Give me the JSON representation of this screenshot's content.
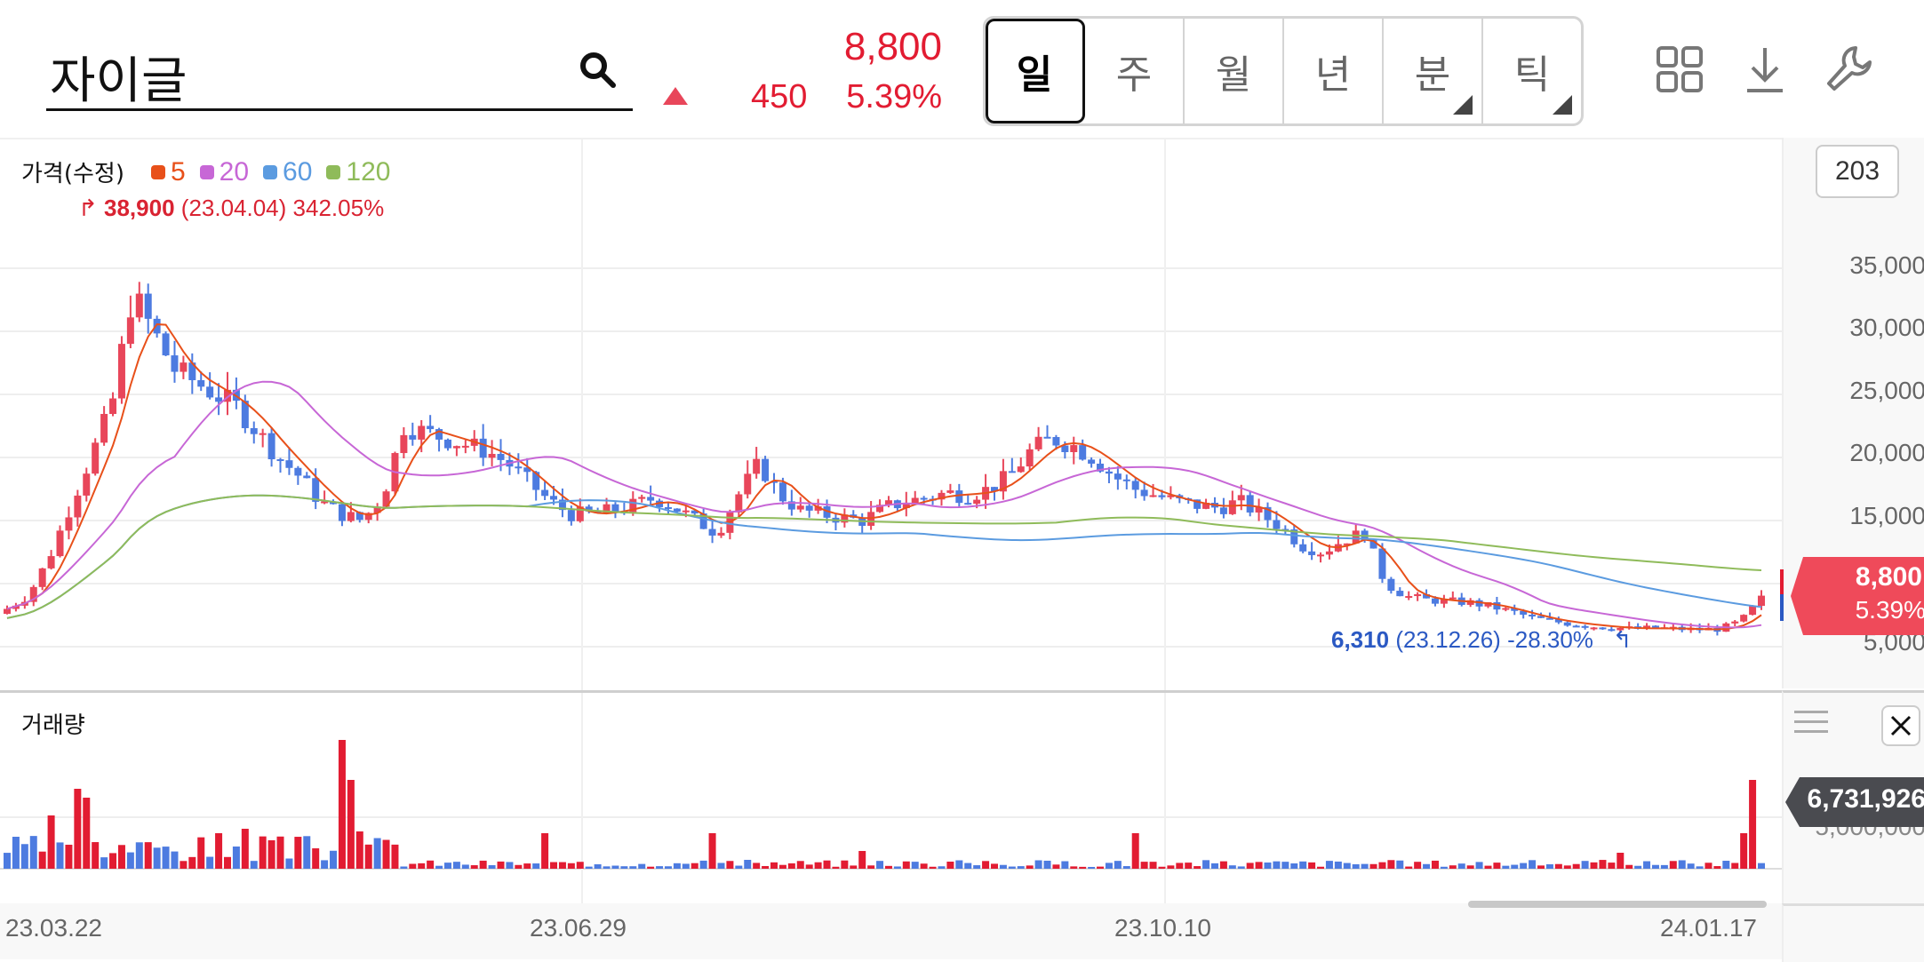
{
  "header": {
    "stock_name": "자이글",
    "price": "8,800",
    "change": "450",
    "change_pct": "5.39%",
    "direction": "up",
    "periods": [
      {
        "label": "일",
        "active": true,
        "has_menu": false
      },
      {
        "label": "주",
        "active": false,
        "has_menu": false
      },
      {
        "label": "월",
        "active": false,
        "has_menu": false
      },
      {
        "label": "년",
        "active": false,
        "has_menu": false
      },
      {
        "label": "분",
        "active": false,
        "has_menu": true
      },
      {
        "label": "틱",
        "active": false,
        "has_menu": true
      }
    ],
    "tools": [
      "layout-grid-icon",
      "download-icon",
      "wrench-icon"
    ]
  },
  "price_panel": {
    "title": "가격(수정)",
    "ma_legend": [
      {
        "label": "5",
        "color": "#e8501a"
      },
      {
        "label": "20",
        "color": "#c767d6"
      },
      {
        "label": "60",
        "color": "#5b9be0"
      },
      {
        "label": "120",
        "color": "#8fbb5a"
      }
    ],
    "high_annotation": {
      "value": "38,900",
      "date": "(23.04.04)",
      "pct": "342.05%"
    },
    "low_annotation": {
      "value": "6,310",
      "date": "(23.12.26)",
      "pct": "-28.30%"
    },
    "candle_count": "203",
    "y_labels": [
      "35,000",
      "30,000",
      "25,000",
      "20,000",
      "15,000",
      "5,000"
    ],
    "current_tag": {
      "price": "8,800",
      "pct": "5.39%"
    }
  },
  "volume_panel": {
    "title": "거래량",
    "current_tag": "6,731,926",
    "y_label": "5,000,000"
  },
  "x_axis": {
    "labels": [
      "23.03.22",
      "23.06.29",
      "23.10.10",
      "24.01.17"
    ]
  },
  "colors": {
    "up": "#e8465a",
    "down": "#4d7be0",
    "accent": "#e21c32"
  },
  "chart_data": {
    "type": "candlestick",
    "title": "가격(수정)",
    "ylim": [
      3000,
      40000
    ],
    "x_ticks": [
      "23.03.22",
      "23.06.29",
      "23.10.10",
      "24.01.17"
    ],
    "y_ticks": [
      5000,
      15000,
      20000,
      25000,
      30000,
      35000
    ],
    "close_path": [
      8000,
      9000,
      12000,
      16000,
      20000,
      24000,
      33000,
      30000,
      27000,
      26000,
      25000,
      24000,
      22000,
      20000,
      18500,
      16500,
      15500,
      15000,
      17000,
      22500,
      22000,
      21500,
      21000,
      20500,
      19500,
      18000,
      16500,
      15500,
      15500,
      15800,
      16200,
      16800,
      16000,
      15000,
      14000,
      17000,
      19500,
      17000,
      15800,
      15500,
      15200,
      15000,
      16000,
      16500,
      16800,
      17200,
      17000,
      17500,
      18500,
      20500,
      21500,
      21000,
      20000,
      18500,
      17500,
      17000,
      16500,
      16200,
      16000,
      16500,
      15500,
      14500,
      13000,
      12500,
      13500,
      14000,
      10000,
      9000,
      8700,
      8600,
      8500,
      8200,
      7800,
      7300,
      7000,
      6800,
      6600,
      6500,
      6400,
      6500,
      6400,
      6350,
      6400,
      7000,
      8800
    ],
    "moving_averages": [
      "MA5",
      "MA20",
      "MA60",
      "MA120"
    ],
    "high": {
      "value": 38900,
      "date": "23.04.04",
      "pct": 342.05
    },
    "low": {
      "value": 6310,
      "date": "23.12.26",
      "pct": -28.3
    },
    "last": {
      "price": 8800,
      "change": 450,
      "pct": 5.39,
      "volume": 6731926
    }
  }
}
